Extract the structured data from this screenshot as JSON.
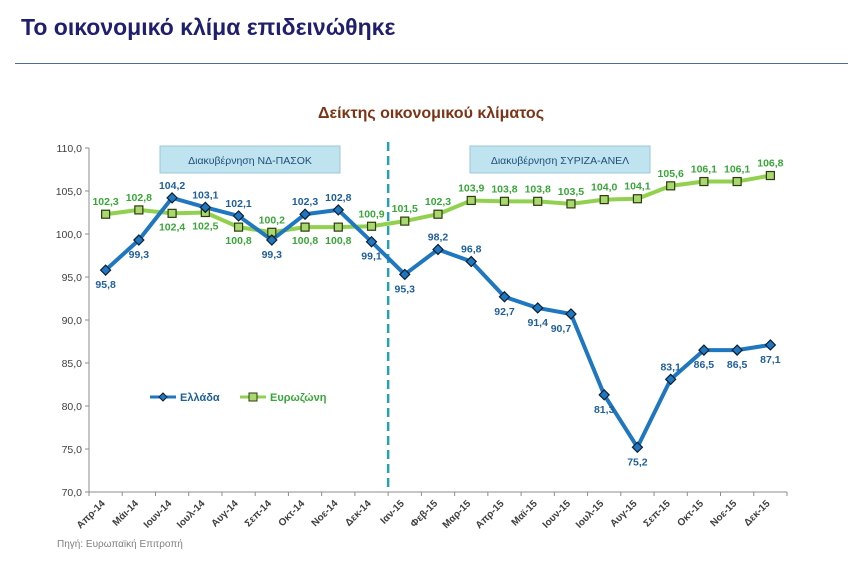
{
  "page": {
    "title": "Το οικονομικό κλίμα επιδεινώθηκε",
    "source": "Πηγή: Ευρωπαϊκή Επιτροπή"
  },
  "chart_data": {
    "type": "line",
    "title": "Δείκτης οικονομικού κλίματος",
    "xlabel": "",
    "ylabel": "",
    "ylim": [
      70,
      110
    ],
    "yticks": [
      "70,0",
      "75,0",
      "80,0",
      "85,0",
      "90,0",
      "95,0",
      "100,0",
      "105,0",
      "110,0"
    ],
    "grid": false,
    "legend_position": "left",
    "categories": [
      "Απρ-14",
      "Μάι-14",
      "Ιουν-14",
      "Ιουλ-14",
      "Αυγ-14",
      "Σεπ-14",
      "Οκτ-14",
      "Νοε-14",
      "Δεκ-14",
      "Ιαν-15",
      "Φεβ-15",
      "Μαρ-15",
      "Απρ-15",
      "Μαϊ-15",
      "Ιουν-15",
      "Ιουλ-15",
      "Αυγ-15",
      "Σεπ-15",
      "Οκτ-15",
      "Νοε-15",
      "Δεκ-15"
    ],
    "series": [
      {
        "name": "Ελλάδα",
        "color": "#1f77c0",
        "values": [
          95.8,
          99.3,
          104.2,
          103.1,
          102.1,
          99.3,
          102.3,
          102.8,
          99.1,
          95.3,
          98.2,
          96.8,
          92.7,
          91.4,
          90.7,
          81.3,
          75.2,
          83.1,
          86.5,
          86.5,
          87.1
        ],
        "labels": [
          "95,8",
          "99,3",
          "104,2",
          "103,1",
          "102,1",
          "99,3",
          "102,3",
          "102,8",
          "99,1",
          "95,3",
          "98,2",
          "96,8",
          "92,7",
          "91,4",
          "90,7",
          "81,3",
          "75,2",
          "83,1",
          "86,5",
          "86,5",
          "87,1"
        ]
      },
      {
        "name": "Ευρωζώνη",
        "color": "#92d050",
        "values": [
          102.3,
          102.8,
          102.4,
          102.5,
          100.8,
          100.2,
          100.8,
          100.8,
          100.9,
          101.5,
          102.3,
          103.9,
          103.8,
          103.8,
          103.5,
          104.0,
          104.1,
          105.6,
          106.1,
          106.1,
          106.8
        ],
        "labels": [
          "102,3",
          "102,8",
          "102,4",
          "102,5",
          "100,8",
          "100,2",
          "100,8",
          "100,8",
          "100,9",
          "101,5",
          "102,3",
          "103,9",
          "103,8",
          "103,8",
          "103,5",
          "104,0",
          "104,1",
          "105,6",
          "106,1",
          "106,1",
          "106,8"
        ]
      }
    ],
    "annotations": [
      {
        "text": "Διακυβέρνηση ΝΔ-ΠΑΣΟΚ"
      },
      {
        "text": "Διακυβέρνηση ΣΥΡΙΖΑ-ΑΝΕΛ"
      }
    ],
    "divider_after_category": "Δεκ-14"
  }
}
